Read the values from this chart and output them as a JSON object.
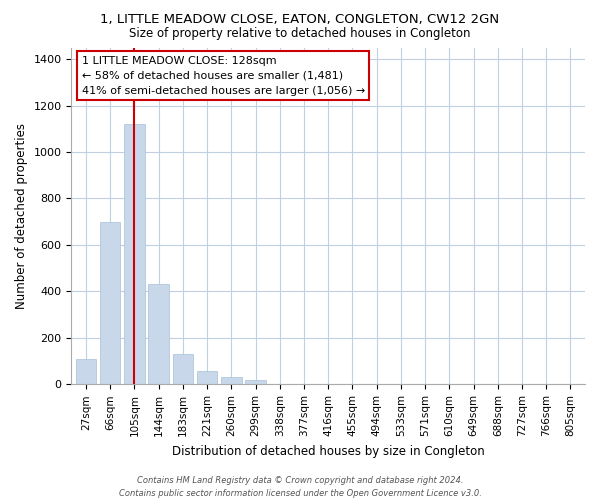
{
  "title": "1, LITTLE MEADOW CLOSE, EATON, CONGLETON, CW12 2GN",
  "subtitle": "Size of property relative to detached houses in Congleton",
  "xlabel": "Distribution of detached houses by size in Congleton",
  "ylabel": "Number of detached properties",
  "bar_labels": [
    "27sqm",
    "66sqm",
    "105sqm",
    "144sqm",
    "183sqm",
    "221sqm",
    "260sqm",
    "299sqm",
    "338sqm",
    "377sqm",
    "416sqm",
    "455sqm",
    "494sqm",
    "533sqm",
    "571sqm",
    "610sqm",
    "649sqm",
    "688sqm",
    "727sqm",
    "766sqm",
    "805sqm"
  ],
  "bar_values": [
    110,
    700,
    1120,
    430,
    130,
    57,
    30,
    17,
    0,
    0,
    0,
    0,
    0,
    0,
    0,
    0,
    0,
    0,
    0,
    0,
    0
  ],
  "bar_color": "#c8d8ea",
  "bar_edge_color": "#a8c0d8",
  "vline_bar_index": 2,
  "vline_color": "#cc0000",
  "annotation_line1": "1 LITTLE MEADOW CLOSE: 128sqm",
  "annotation_line2": "← 58% of detached houses are smaller (1,481)",
  "annotation_line3": "41% of semi-detached houses are larger (1,056) →",
  "ylim": [
    0,
    1450
  ],
  "yticks": [
    0,
    200,
    400,
    600,
    800,
    1000,
    1200,
    1400
  ],
  "footer_line1": "Contains HM Land Registry data © Crown copyright and database right 2024.",
  "footer_line2": "Contains public sector information licensed under the Open Government Licence v3.0.",
  "background_color": "#ffffff",
  "grid_color": "#c0d0e0"
}
